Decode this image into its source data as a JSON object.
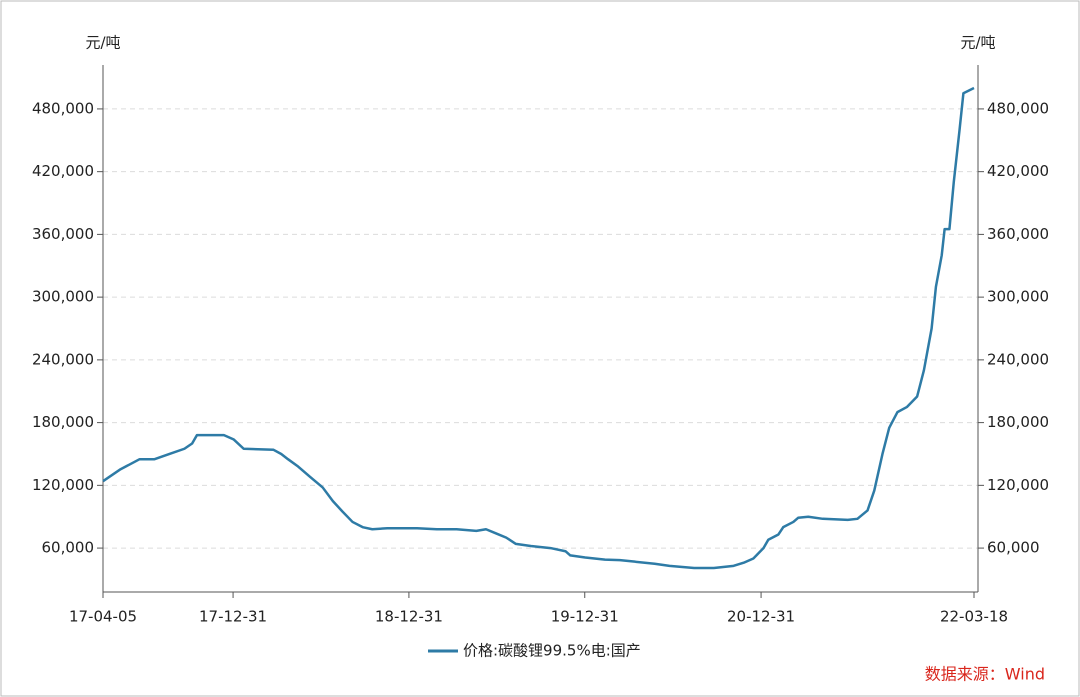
{
  "chart_data": {
    "type": "line",
    "y_label": "元/吨",
    "y2_label": "元/吨",
    "source": "数据来源：Wind",
    "x": [
      "17-04-05",
      "17-05-10",
      "17-06-20",
      "17-07-21",
      "17-08-21",
      "17-09-21",
      "17-10-07",
      "17-10-17",
      "17-12-12",
      "18-01-01",
      "18-01-22",
      "18-03-25",
      "18-04-10",
      "18-04-24",
      "18-05-15",
      "18-06-09",
      "18-07-05",
      "18-07-26",
      "18-08-15",
      "18-09-05",
      "18-09-26",
      "18-10-16",
      "18-11-16",
      "19-01-17",
      "19-02-27",
      "19-04-09",
      "19-05-20",
      "19-06-09",
      "19-06-30",
      "19-07-21",
      "19-08-10",
      "19-09-10",
      "19-10-21",
      "19-11-21",
      "19-12-01",
      "20-01-01",
      "20-02-11",
      "20-03-13",
      "20-04-13",
      "20-05-24",
      "20-06-24",
      "20-08-14",
      "20-09-24",
      "20-11-04",
      "20-11-25",
      "20-12-15",
      "21-01-05",
      "21-01-15",
      "21-02-05",
      "21-02-15",
      "21-03-08",
      "21-03-18",
      "21-04-08",
      "21-05-08",
      "21-06-29",
      "21-07-19",
      "21-08-09",
      "21-08-23",
      "21-09-09",
      "21-09-23",
      "21-10-10",
      "21-10-30",
      "21-11-20",
      "21-12-04",
      "21-12-20",
      "21-12-29",
      "22-01-10",
      "22-01-16",
      "22-01-26",
      "22-02-04",
      "22-02-16",
      "22-02-24",
      "22-03-18"
    ],
    "series": [
      {
        "name": "价格:碳酸锂99.5%电:国产",
        "color": "#2e7ba6",
        "values": [
          124000,
          135000,
          145000,
          145000,
          150000,
          155000,
          160000,
          168000,
          168000,
          164000,
          155000,
          154000,
          150000,
          145000,
          138000,
          128000,
          118000,
          105000,
          95000,
          85000,
          80000,
          78000,
          79000,
          79000,
          78000,
          78000,
          76500,
          78000,
          74000,
          70000,
          64000,
          62000,
          60000,
          57000,
          53000,
          51000,
          49000,
          48500,
          47000,
          45000,
          43000,
          41000,
          41000,
          43000,
          46000,
          50000,
          60000,
          68000,
          73000,
          80000,
          85000,
          89000,
          90000,
          88000,
          87000,
          88000,
          96000,
          115000,
          150000,
          175000,
          190000,
          195000,
          205000,
          230000,
          270000,
          310000,
          340000,
          365000,
          365000,
          410000,
          460000,
          495000,
          500000
        ]
      }
    ],
    "xlim": [
      "17-04-05",
      "22-03-18"
    ],
    "xticks": [
      "17-04-05",
      "17-12-31",
      "18-12-31",
      "19-12-31",
      "20-12-31",
      "22-03-18"
    ],
    "ylim": [
      18000,
      522000
    ],
    "yticks": [
      {
        "value": 60000,
        "label": "60,000"
      },
      {
        "value": 120000,
        "label": "120,000"
      },
      {
        "value": 180000,
        "label": "180,000"
      },
      {
        "value": 240000,
        "label": "240,000"
      },
      {
        "value": 300000,
        "label": "300,000"
      },
      {
        "value": 360000,
        "label": "360,000"
      },
      {
        "value": 420000,
        "label": "420,000"
      },
      {
        "value": 480000,
        "label": "480,000"
      }
    ],
    "grid": true
  }
}
